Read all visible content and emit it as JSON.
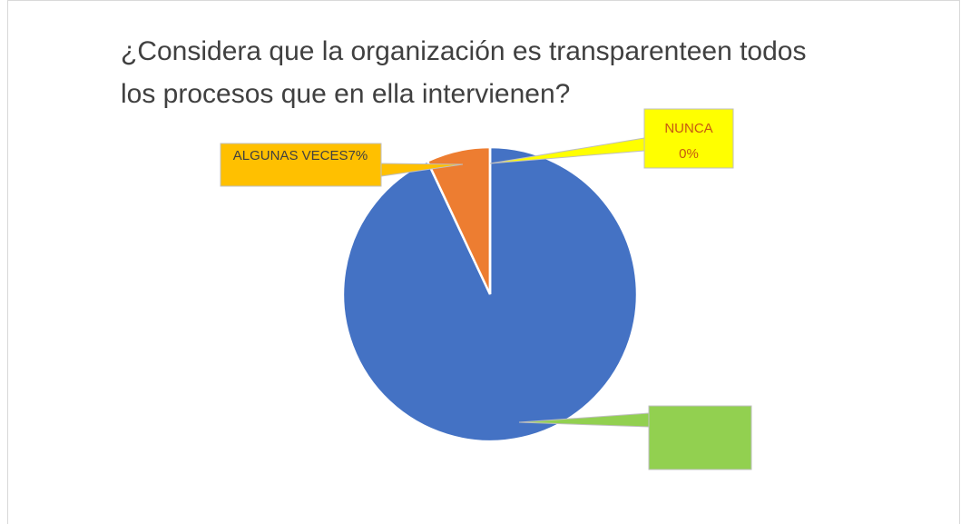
{
  "chart_data": {
    "type": "pie",
    "title_lines": [
      "¿Considera que la organización es transparenteen todos",
      "los procesos que  en ella intervienen?"
    ],
    "categories": [
      null,
      "ALGUNAS VECES",
      "NUNCA"
    ],
    "values": [
      93,
      7,
      0
    ],
    "value_labels": [
      null,
      "7%",
      "0%"
    ],
    "colors": [
      "#4472c4",
      "#ed7d31",
      "#ffff00"
    ]
  }
}
